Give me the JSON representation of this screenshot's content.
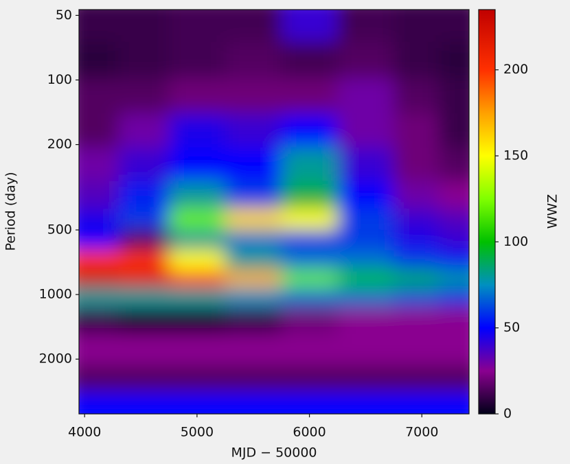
{
  "chart_data": {
    "type": "heatmap",
    "x_label": "MJD − 50000",
    "y_label": "Period (day)",
    "colorbar_label": "WWZ",
    "x": [
      4100,
      4500,
      5000,
      5500,
      6000,
      6500,
      7000,
      7300
    ],
    "y": [
      55,
      80,
      120,
      170,
      250,
      350,
      450,
      550,
      700,
      850,
      1000,
      1300,
      1800,
      2500,
      3200
    ],
    "values": [
      [
        10,
        10,
        12,
        12,
        40,
        12,
        10,
        10
      ],
      [
        8,
        10,
        12,
        15,
        12,
        15,
        10,
        8
      ],
      [
        15,
        15,
        20,
        20,
        20,
        30,
        15,
        10
      ],
      [
        15,
        30,
        45,
        40,
        50,
        30,
        20,
        10
      ],
      [
        30,
        40,
        50,
        50,
        80,
        40,
        20,
        15
      ],
      [
        35,
        55,
        80,
        60,
        90,
        50,
        30,
        25
      ],
      [
        45,
        60,
        120,
        160,
        150,
        60,
        40,
        35
      ],
      [
        50,
        15,
        80,
        70,
        60,
        60,
        45,
        40
      ],
      [
        200,
        200,
        150,
        80,
        70,
        70,
        60,
        55
      ],
      [
        230,
        220,
        200,
        170,
        120,
        100,
        90,
        80
      ],
      [
        80,
        80,
        80,
        75,
        70,
        70,
        65,
        60
      ],
      [
        10,
        5,
        5,
        10,
        20,
        25,
        25,
        25
      ],
      [
        25,
        25,
        25,
        25,
        25,
        25,
        25,
        25
      ],
      [
        15,
        15,
        15,
        15,
        15,
        15,
        15,
        15
      ],
      [
        50,
        50,
        50,
        50,
        50,
        50,
        50,
        50
      ]
    ],
    "xlim": [
      3950,
      7420
    ],
    "xticks": [
      4000,
      5000,
      6000,
      7000
    ],
    "ylim": [
      47,
      3600
    ],
    "y_log": true,
    "y_inverted": true,
    "yticks": [
      50,
      100,
      200,
      500,
      1000,
      2000
    ],
    "clim": [
      0,
      235
    ],
    "cticks": [
      0,
      50,
      100,
      150,
      200
    ],
    "colormap": [
      [
        0,
        "#000018"
      ],
      [
        25,
        "#8a0090"
      ],
      [
        50,
        "#0000ff"
      ],
      [
        75,
        "#0090c0"
      ],
      [
        100,
        "#00c000"
      ],
      [
        125,
        "#80ff00"
      ],
      [
        150,
        "#ffff00"
      ],
      [
        175,
        "#ffa000"
      ],
      [
        200,
        "#ff3000"
      ],
      [
        235,
        "#c00000"
      ]
    ]
  }
}
